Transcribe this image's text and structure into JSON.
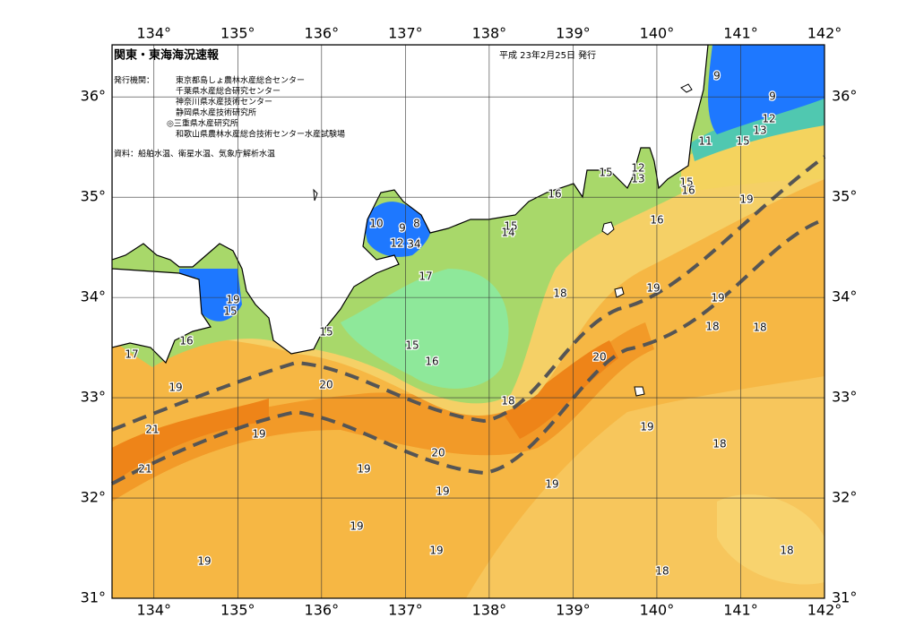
{
  "header": {
    "title": "関東・東海海況速報",
    "date": "平成 23年2月25日 発行"
  },
  "issuers": {
    "label": "発行機関：",
    "items": [
      "東京都島しょ農林水産総合センター",
      "千葉県水産総合研究センター",
      "神奈川県水産技術センター",
      "静岡県水産技術研究所",
      "◎三重県水産研究所",
      "和歌山県農林水産総合技術センター水産試験場"
    ]
  },
  "source": "資料：船舶水温、衛星水温、気象庁解析水温",
  "map": {
    "lon_range": [
      133.5,
      142
    ],
    "lat_range": [
      31,
      36.52
    ],
    "lon_ticks": [
      {
        "value": 134,
        "label": "134°"
      },
      {
        "value": 135,
        "label": "135°"
      },
      {
        "value": 136,
        "label": "136°"
      },
      {
        "value": 137,
        "label": "137°"
      },
      {
        "value": 138,
        "label": "138°"
      },
      {
        "value": 139,
        "label": "139°"
      },
      {
        "value": 140,
        "label": "140°"
      },
      {
        "value": 141,
        "label": "141°"
      },
      {
        "value": 142,
        "label": "142°"
      }
    ],
    "lat_ticks": [
      {
        "value": 31,
        "label": "31°"
      },
      {
        "value": 32,
        "label": "32°"
      },
      {
        "value": 33,
        "label": "33°"
      },
      {
        "value": 34,
        "label": "34°"
      },
      {
        "value": 35,
        "label": "35°"
      },
      {
        "value": 36,
        "label": "36°"
      }
    ],
    "contour_labels": [
      9,
      9,
      12,
      13,
      11,
      15,
      15,
      12,
      13,
      15,
      16,
      16,
      16,
      19,
      10,
      9,
      8,
      12,
      34,
      15,
      14,
      17,
      18,
      19,
      19,
      18,
      18,
      19,
      15,
      16,
      15,
      15,
      16,
      17,
      19,
      20,
      20,
      18,
      19,
      18,
      21,
      19,
      21,
      20,
      19,
      19,
      19,
      19,
      19,
      19,
      18,
      18
    ]
  }
}
